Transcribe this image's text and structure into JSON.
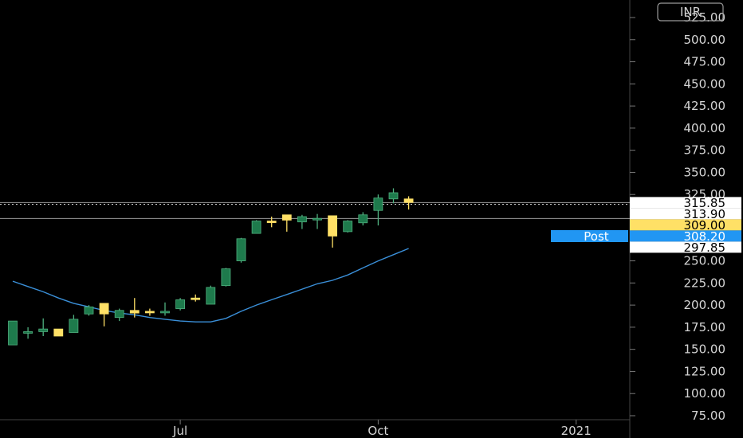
{
  "currency_label": "INR",
  "session_label": "Post",
  "colors": {
    "background": "#000000",
    "up": "#1e7a4c",
    "down": "#ffe066",
    "ma": "#3a8fd8",
    "grid": "#555555",
    "post": "#2196f3"
  },
  "chart_data": {
    "type": "candlestick",
    "ylim": [
      75,
      525
    ],
    "y_ticks": [
      "75.00",
      "100.00",
      "125.00",
      "150.00",
      "175.00",
      "200.00",
      "225.00",
      "250.00",
      "275.00",
      "300.00",
      "325.00",
      "350.00",
      "375.00",
      "400.00",
      "425.00",
      "450.00",
      "475.00",
      "500.00",
      "525.00"
    ],
    "x_labels": [
      {
        "label": "Jul",
        "week": 11
      },
      {
        "label": "Oct",
        "week": 24
      },
      {
        "label": "2021",
        "week": 37
      }
    ],
    "candles": [
      {
        "week": 0,
        "o": 155,
        "h": 182,
        "l": 155,
        "c": 182
      },
      {
        "week": 1,
        "o": 170,
        "h": 175,
        "l": 162,
        "c": 170
      },
      {
        "week": 2,
        "o": 170,
        "h": 185,
        "l": 165,
        "c": 173
      },
      {
        "week": 3,
        "o": 173,
        "h": 173,
        "l": 165,
        "c": 165
      },
      {
        "week": 4,
        "o": 169,
        "h": 189,
        "l": 169,
        "c": 184
      },
      {
        "week": 5,
        "o": 190,
        "h": 200,
        "l": 188,
        "c": 198
      },
      {
        "week": 6,
        "o": 202,
        "h": 202,
        "l": 176,
        "c": 190
      },
      {
        "week": 7,
        "o": 186,
        "h": 196,
        "l": 182,
        "c": 194
      },
      {
        "week": 8,
        "o": 194,
        "h": 208,
        "l": 186,
        "c": 191
      },
      {
        "week": 9,
        "o": 193,
        "h": 196,
        "l": 188,
        "c": 192
      },
      {
        "week": 10,
        "o": 193,
        "h": 203,
        "l": 188,
        "c": 193
      },
      {
        "week": 11,
        "o": 196,
        "h": 208,
        "l": 194,
        "c": 206
      },
      {
        "week": 12,
        "o": 208,
        "h": 212,
        "l": 204,
        "c": 207
      },
      {
        "week": 13,
        "o": 201,
        "h": 222,
        "l": 201,
        "c": 220
      },
      {
        "week": 14,
        "o": 222,
        "h": 242,
        "l": 221,
        "c": 241
      },
      {
        "week": 15,
        "o": 250,
        "h": 276,
        "l": 248,
        "c": 275
      },
      {
        "week": 16,
        "o": 281,
        "h": 296,
        "l": 281,
        "c": 295
      },
      {
        "week": 17,
        "o": 295,
        "h": 300,
        "l": 288,
        "c": 294
      },
      {
        "week": 18,
        "o": 302,
        "h": 302,
        "l": 283,
        "c": 296
      },
      {
        "week": 19,
        "o": 294,
        "h": 302,
        "l": 286,
        "c": 300
      },
      {
        "week": 20,
        "o": 298,
        "h": 303,
        "l": 286,
        "c": 298
      },
      {
        "week": 21,
        "o": 301,
        "h": 301,
        "l": 265,
        "c": 278
      },
      {
        "week": 22,
        "o": 283,
        "h": 296,
        "l": 282,
        "c": 295
      },
      {
        "week": 23,
        "o": 293,
        "h": 305,
        "l": 290,
        "c": 302
      },
      {
        "week": 24,
        "o": 307,
        "h": 325,
        "l": 290,
        "c": 321
      },
      {
        "week": 25,
        "o": 320,
        "h": 332,
        "l": 315,
        "c": 327
      },
      {
        "week": 26,
        "o": 320,
        "h": 323,
        "l": 308,
        "c": 316
      }
    ],
    "moving_average": [
      {
        "week": 0,
        "v": 227
      },
      {
        "week": 1,
        "v": 221
      },
      {
        "week": 2,
        "v": 215
      },
      {
        "week": 3,
        "v": 208
      },
      {
        "week": 4,
        "v": 202
      },
      {
        "week": 5,
        "v": 198
      },
      {
        "week": 6,
        "v": 194
      },
      {
        "week": 7,
        "v": 191
      },
      {
        "week": 8,
        "v": 189
      },
      {
        "week": 9,
        "v": 186
      },
      {
        "week": 10,
        "v": 184
      },
      {
        "week": 11,
        "v": 182
      },
      {
        "week": 12,
        "v": 181
      },
      {
        "week": 13,
        "v": 181
      },
      {
        "week": 14,
        "v": 185
      },
      {
        "week": 15,
        "v": 193
      },
      {
        "week": 16,
        "v": 200
      },
      {
        "week": 17,
        "v": 206
      },
      {
        "week": 18,
        "v": 212
      },
      {
        "week": 19,
        "v": 218
      },
      {
        "week": 20,
        "v": 224
      },
      {
        "week": 21,
        "v": 228
      },
      {
        "week": 22,
        "v": 234
      },
      {
        "week": 23,
        "v": 242
      },
      {
        "week": 24,
        "v": 250
      },
      {
        "week": 25,
        "v": 257
      },
      {
        "week": 26,
        "v": 264
      }
    ],
    "price_tags": [
      {
        "value": 315.85,
        "label": "315.85",
        "style": "white",
        "line": "solid"
      },
      {
        "value": 313.9,
        "label": "313.90",
        "style": "white",
        "line": "dotted"
      },
      {
        "value": 309.0,
        "label": "309.00",
        "style": "yellow",
        "line": "none"
      },
      {
        "value": 308.2,
        "label": "308.20",
        "style": "blue",
        "line": "none"
      },
      {
        "value": 297.85,
        "label": "297.85",
        "style": "white",
        "line": "solid"
      }
    ]
  }
}
